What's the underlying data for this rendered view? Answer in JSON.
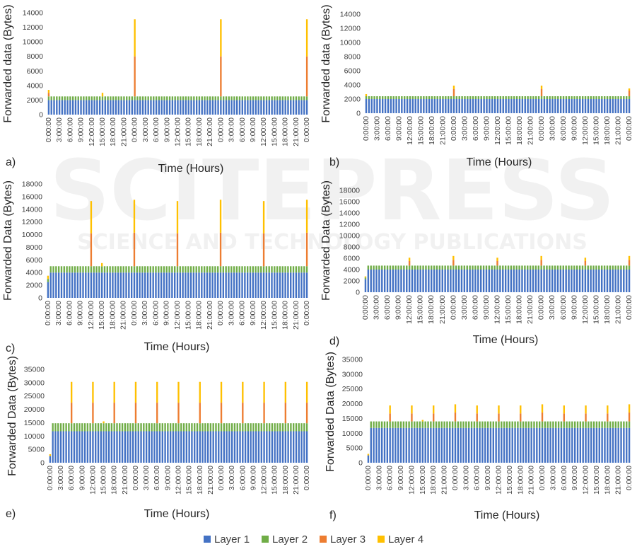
{
  "colors": {
    "layer1": "#4472C4",
    "layer2": "#70AD47",
    "layer3": "#ED7D31",
    "layer4": "#FFC000"
  },
  "legend": [
    "Layer 1",
    "Layer 2",
    "Layer 3",
    "Layer 4"
  ],
  "watermark": {
    "main": "SCITEPRESS",
    "sub": "SCIENCE AND TECHNOLOGY PUBLICATIONS"
  },
  "chart_data": [
    {
      "type": "bar",
      "stacked": true,
      "panel": "a)",
      "ylabel": "Forwarded data (Bytes)",
      "xlabel": "Time (Hours)",
      "ylim": [
        0,
        14000
      ],
      "yticks": [
        0,
        2000,
        4000,
        6000,
        8000,
        10000,
        12000,
        14000
      ],
      "xticks": [
        "0:00:00",
        "3:00:00",
        "6:00:00",
        "9:00:00",
        "12:00:00",
        "15:00:00",
        "18:00:00",
        "21:00:00",
        "0:00:00",
        "3:00:00",
        "6:00:00",
        "9:00:00",
        "12:00:00",
        "15:00:00",
        "18:00:00",
        "21:00:00",
        "0:00:00",
        "3:00:00",
        "6:00:00",
        "9:00:00",
        "12:00:00",
        "15:00:00",
        "18:00:00",
        "21:00:00",
        "0:00:00"
      ],
      "n_bars": 97,
      "base": [
        2000,
        500,
        0,
        0
      ],
      "special": [
        {
          "i": 0,
          "v": [
            2000,
            500,
            500,
            400
          ]
        },
        {
          "i": 20,
          "v": [
            2000,
            500,
            0,
            500
          ]
        },
        {
          "i": 32,
          "v": [
            2000,
            500,
            5500,
            5100
          ]
        },
        {
          "i": 64,
          "v": [
            2000,
            500,
            5500,
            5100
          ]
        },
        {
          "i": 96,
          "v": [
            2000,
            500,
            5500,
            5100
          ]
        }
      ]
    },
    {
      "type": "bar",
      "stacked": true,
      "panel": "b)",
      "ylabel": "Forwarded data (Bytes)",
      "xlabel": "Time (Hours)",
      "ylim": [
        0,
        14000
      ],
      "yticks": [
        0,
        2000,
        4000,
        6000,
        8000,
        10000,
        12000,
        14000
      ],
      "xticks": [
        "0:00:00",
        "3:00:00",
        "6:00:00",
        "9:00:00",
        "12:00:00",
        "15:00:00",
        "18:00:00",
        "21:00:00",
        "0:00:00",
        "3:00:00",
        "6:00:00",
        "9:00:00",
        "12:00:00",
        "15:00:00",
        "18:00:00",
        "21:00:00",
        "0:00:00",
        "3:00:00",
        "6:00:00",
        "9:00:00",
        "12:00:00",
        "15:00:00",
        "18:00:00",
        "21:00:00",
        "0:00:00"
      ],
      "n_bars": 97,
      "base": [
        2000,
        400,
        0,
        0
      ],
      "special": [
        {
          "i": 0,
          "v": [
            2000,
            400,
            0,
            300
          ]
        },
        {
          "i": 32,
          "v": [
            2000,
            400,
            1000,
            500
          ]
        },
        {
          "i": 64,
          "v": [
            2000,
            400,
            1000,
            500
          ]
        },
        {
          "i": 96,
          "v": [
            2000,
            400,
            800,
            300
          ]
        }
      ]
    },
    {
      "type": "bar",
      "stacked": true,
      "panel": "c)",
      "ylabel": "Forwarded Data (Bytes)",
      "xlabel": "Time (Hours)",
      "ylim": [
        0,
        18000
      ],
      "yticks": [
        0,
        2000,
        4000,
        6000,
        8000,
        10000,
        12000,
        14000,
        16000,
        18000
      ],
      "xticks": [
        "0:00:00",
        "3:00:00",
        "6:00:00",
        "9:00:00",
        "12:00:00",
        "15:00:00",
        "18:00:00",
        "21:00:00",
        "0:00:00",
        "3:00:00",
        "6:00:00",
        "9:00:00",
        "12:00:00",
        "15:00:00",
        "18:00:00",
        "21:00:00",
        "0:00:00",
        "3:00:00",
        "6:00:00",
        "9:00:00",
        "12:00:00",
        "15:00:00",
        "18:00:00",
        "21:00:00",
        "0:00:00"
      ],
      "n_bars": 97,
      "base": [
        4000,
        1000,
        0,
        0
      ],
      "special": [
        {
          "i": 0,
          "v": [
            2500,
            500,
            0,
            500
          ]
        },
        {
          "i": 16,
          "v": [
            4000,
            1000,
            5200,
            5100
          ]
        },
        {
          "i": 20,
          "v": [
            4000,
            1000,
            0,
            500
          ]
        },
        {
          "i": 32,
          "v": [
            4000,
            1000,
            5300,
            5200
          ]
        },
        {
          "i": 48,
          "v": [
            4000,
            1000,
            5200,
            5100
          ]
        },
        {
          "i": 64,
          "v": [
            4000,
            1000,
            5300,
            5200
          ]
        },
        {
          "i": 80,
          "v": [
            4000,
            1000,
            5200,
            5100
          ]
        },
        {
          "i": 96,
          "v": [
            4000,
            1000,
            5300,
            5200
          ]
        }
      ]
    },
    {
      "type": "bar",
      "stacked": true,
      "panel": "d)",
      "ylabel": "Forwarded Data (Bytes)",
      "xlabel": "Time (Hours)",
      "ylim": [
        0,
        18000
      ],
      "yticks": [
        0,
        2000,
        4000,
        6000,
        8000,
        10000,
        12000,
        14000,
        16000,
        18000
      ],
      "xticks": [
        "0:00:00",
        "3:00:00",
        "6:00:00",
        "9:00:00",
        "12:00:00",
        "15:00:00",
        "18:00:00",
        "21:00:00",
        "0:00:00",
        "3:00:00",
        "6:00:00",
        "9:00:00",
        "12:00:00",
        "15:00:00",
        "18:00:00",
        "21:00:00",
        "0:00:00",
        "3:00:00",
        "6:00:00",
        "9:00:00",
        "12:00:00",
        "15:00:00",
        "18:00:00",
        "21:00:00",
        "0:00:00"
      ],
      "n_bars": 97,
      "base": [
        4000,
        700,
        0,
        0
      ],
      "special": [
        {
          "i": 0,
          "v": [
            2300,
            300,
            0,
            200
          ]
        },
        {
          "i": 16,
          "v": [
            4000,
            700,
            800,
            600
          ]
        },
        {
          "i": 32,
          "v": [
            4000,
            700,
            1000,
            700
          ]
        },
        {
          "i": 48,
          "v": [
            4000,
            700,
            800,
            600
          ]
        },
        {
          "i": 64,
          "v": [
            4000,
            700,
            1000,
            700
          ]
        },
        {
          "i": 80,
          "v": [
            4000,
            700,
            800,
            600
          ]
        },
        {
          "i": 96,
          "v": [
            4000,
            700,
            1000,
            700
          ]
        }
      ]
    },
    {
      "type": "bar",
      "stacked": true,
      "panel": "e)",
      "ylabel": "Forwarded Data (Bytes)",
      "xlabel": "Time (Hours)",
      "ylim": [
        0,
        35000
      ],
      "yticks": [
        0,
        5000,
        10000,
        15000,
        20000,
        25000,
        30000,
        35000
      ],
      "xticks": [
        "0:00:00",
        "3:00:00",
        "6:00:00",
        "9:00:00",
        "12:00:00",
        "15:00:00",
        "18:00:00",
        "21:00:00",
        "0:00:00",
        "3:00:00",
        "6:00:00",
        "9:00:00",
        "12:00:00",
        "15:00:00",
        "18:00:00",
        "21:00:00",
        "0:00:00",
        "3:00:00",
        "6:00:00",
        "9:00:00",
        "12:00:00",
        "15:00:00",
        "18:00:00",
        "21:00:00",
        "0:00:00"
      ],
      "n_bars": 97,
      "base": [
        11800,
        3000,
        0,
        0
      ],
      "special": [
        {
          "i": 0,
          "v": [
            2500,
            0,
            0,
            700
          ]
        },
        {
          "i": 8,
          "v": [
            11800,
            3000,
            7700,
            7800
          ]
        },
        {
          "i": 16,
          "v": [
            11800,
            3000,
            7700,
            7800
          ]
        },
        {
          "i": 20,
          "v": [
            11800,
            3000,
            0,
            700
          ]
        },
        {
          "i": 24,
          "v": [
            11800,
            3000,
            7700,
            7800
          ]
        },
        {
          "i": 32,
          "v": [
            11800,
            3000,
            7700,
            7800
          ]
        },
        {
          "i": 40,
          "v": [
            11800,
            3000,
            7700,
            7800
          ]
        },
        {
          "i": 48,
          "v": [
            11800,
            3000,
            7700,
            7800
          ]
        },
        {
          "i": 56,
          "v": [
            11800,
            3000,
            7700,
            7800
          ]
        },
        {
          "i": 64,
          "v": [
            11800,
            3000,
            7700,
            7800
          ]
        },
        {
          "i": 72,
          "v": [
            11800,
            3000,
            7700,
            7800
          ]
        },
        {
          "i": 80,
          "v": [
            11800,
            3000,
            7700,
            7800
          ]
        },
        {
          "i": 88,
          "v": [
            11800,
            3000,
            7700,
            7800
          ]
        },
        {
          "i": 96,
          "v": [
            11800,
            3000,
            7700,
            7800
          ]
        }
      ]
    },
    {
      "type": "bar",
      "stacked": true,
      "panel": "f)",
      "ylabel": "Forwarded Data (Bytes)",
      "xlabel": "Time (Hours)",
      "ylim": [
        0,
        35000
      ],
      "yticks": [
        0,
        5000,
        10000,
        15000,
        20000,
        25000,
        30000,
        35000
      ],
      "xticks": [
        "0:00:00",
        "3:00:00",
        "6:00:00",
        "9:00:00",
        "12:00:00",
        "15:00:00",
        "18:00:00",
        "21:00:00",
        "0:00:00",
        "3:00:00",
        "6:00:00",
        "9:00:00",
        "12:00:00",
        "15:00:00",
        "18:00:00",
        "21:00:00",
        "0:00:00",
        "3:00:00",
        "6:00:00",
        "9:00:00",
        "12:00:00",
        "15:00:00",
        "18:00:00",
        "21:00:00",
        "0:00:00"
      ],
      "n_bars": 97,
      "base": [
        11800,
        2200,
        0,
        0
      ],
      "special": [
        {
          "i": 0,
          "v": [
            2500,
            0,
            0,
            500
          ]
        },
        {
          "i": 8,
          "v": [
            11800,
            2200,
            2700,
            2700
          ]
        },
        {
          "i": 16,
          "v": [
            11800,
            2200,
            2700,
            2700
          ]
        },
        {
          "i": 20,
          "v": [
            11800,
            2200,
            0,
            500
          ]
        },
        {
          "i": 24,
          "v": [
            11800,
            2200,
            2700,
            2700
          ]
        },
        {
          "i": 32,
          "v": [
            11800,
            2200,
            3000,
            2800
          ]
        },
        {
          "i": 40,
          "v": [
            11800,
            2200,
            2700,
            2700
          ]
        },
        {
          "i": 48,
          "v": [
            11800,
            2200,
            2700,
            2700
          ]
        },
        {
          "i": 56,
          "v": [
            11800,
            2200,
            2700,
            2700
          ]
        },
        {
          "i": 64,
          "v": [
            11800,
            2200,
            3000,
            2800
          ]
        },
        {
          "i": 72,
          "v": [
            11800,
            2200,
            2700,
            2700
          ]
        },
        {
          "i": 80,
          "v": [
            11800,
            2200,
            2700,
            2700
          ]
        },
        {
          "i": 88,
          "v": [
            11800,
            2200,
            2700,
            2700
          ]
        },
        {
          "i": 96,
          "v": [
            11800,
            2200,
            3000,
            2800
          ]
        }
      ]
    }
  ]
}
